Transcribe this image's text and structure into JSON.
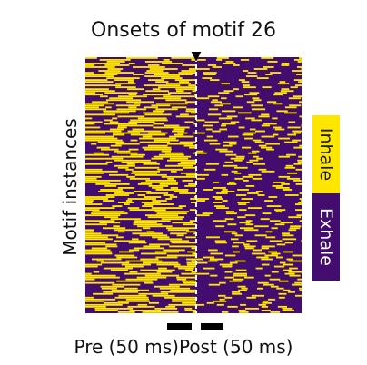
{
  "chart_data": {
    "type": "heatmap",
    "title": "Onsets of motif 26",
    "ylabel": "Motif instances",
    "xlabels": {
      "pre": "Pre (50 ms)",
      "post": "Post (50 ms)"
    },
    "legend": [
      {
        "name": "Inhale",
        "color": "#ffe600",
        "value": 1
      },
      {
        "name": "Exhale",
        "color": "#430d70",
        "value": 0
      }
    ],
    "onset_marker": "▼",
    "legend_position": "right",
    "rows": 140,
    "pre_inhale_fraction": 0.45,
    "post_inhale_fraction": 0.12,
    "colors": {
      "inhale": "#ffe600",
      "exhale": "#430d70",
      "onset_line": "#ffffff"
    }
  }
}
